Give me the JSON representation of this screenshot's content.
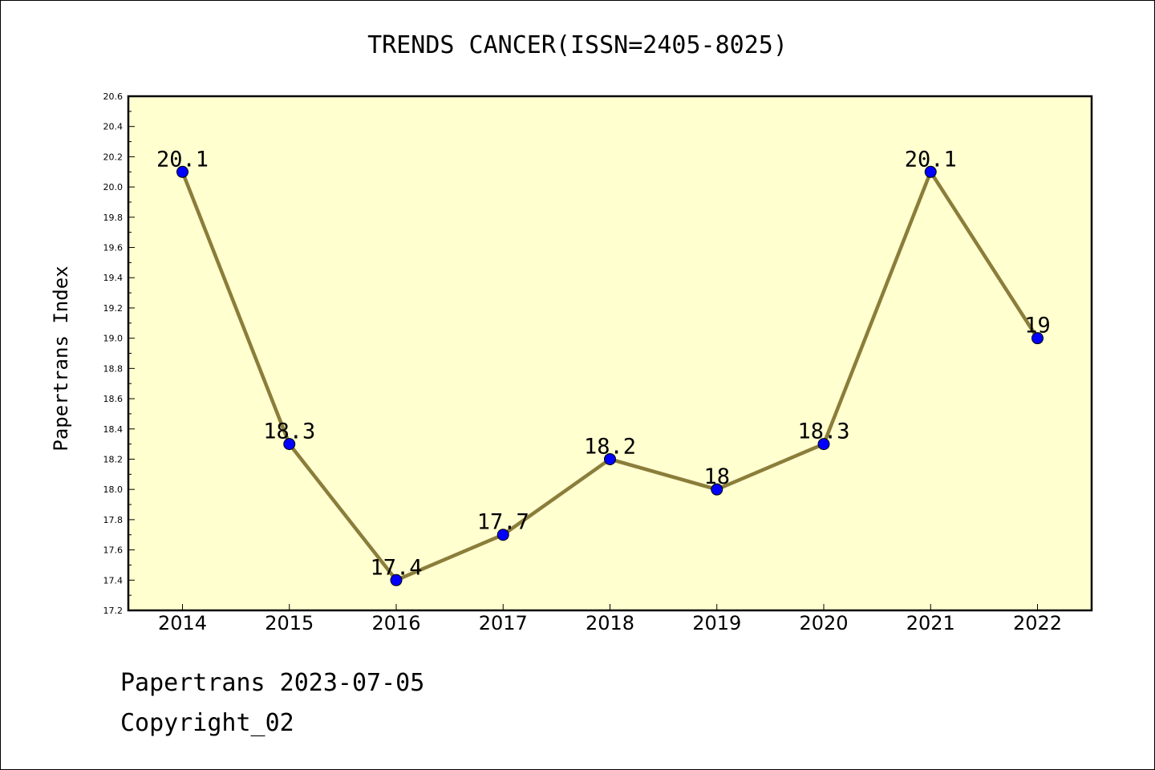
{
  "chart_data": {
    "type": "line",
    "title": "TRENDS CANCER(ISSN=2405-8025)",
    "ylabel": "Papertrans Index",
    "xlabel": "",
    "categories": [
      "2014",
      "2015",
      "2016",
      "2017",
      "2018",
      "2019",
      "2020",
      "2021",
      "2022"
    ],
    "values": [
      20.1,
      18.3,
      17.4,
      17.7,
      18.2,
      18.0,
      18.3,
      20.1,
      19.0
    ],
    "data_labels": [
      "20.1",
      "18.3",
      "17.4",
      "17.7",
      "18.2",
      "18",
      "18.3",
      "20.1",
      "19"
    ],
    "ylim": [
      17.2,
      20.6
    ],
    "yticks": [
      "17.2",
      "17.4",
      "17.6",
      "17.8",
      "18.0",
      "18.2",
      "18.4",
      "18.6",
      "18.8",
      "19.0",
      "19.2",
      "19.4",
      "19.6",
      "19.8",
      "20.0",
      "20.2",
      "20.4",
      "20.6"
    ],
    "grid": false,
    "line_color": "#8b7d3a",
    "marker_color": "#0000ff",
    "plot_background": "#ffffd0"
  },
  "footer": {
    "line1": "Papertrans 2023-07-05",
    "line2": "Copyright_02"
  }
}
